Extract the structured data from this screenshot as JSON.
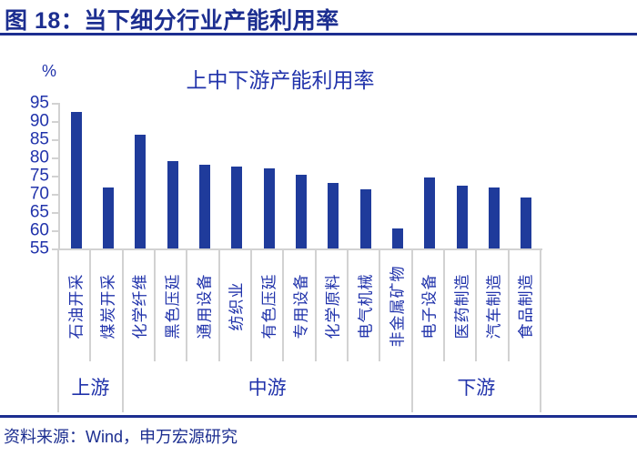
{
  "header": {
    "title": "图 18：当下细分行业产能利用率"
  },
  "source": {
    "text": "资料来源：Wind，申万宏源研究"
  },
  "colors": {
    "header_text": "#1c2e90",
    "chart_text": "#2133ab",
    "bar": "#1f3b9b",
    "axis_gray": "#d2d2d2"
  },
  "chart_data": {
    "type": "bar",
    "title": "上中下游产能利用率",
    "y_unit": "%",
    "categories": [
      "石油开采",
      "煤炭开采",
      "化学纤维",
      "黑色压延",
      "通用设备",
      "纺织业",
      "有色压延",
      "专用设备",
      "化学原料",
      "电气机械",
      "非金属矿物",
      "电子设备",
      "医药制造",
      "汽车制造",
      "食品制造"
    ],
    "values": [
      92.6,
      71.7,
      86.3,
      79.1,
      77.9,
      77.4,
      77.1,
      75.2,
      73.0,
      71.3,
      60.5,
      74.4,
      72.2,
      71.7,
      68.9
    ],
    "groups": [
      {
        "label": "上游",
        "from": 0,
        "to": 2
      },
      {
        "label": "中游",
        "from": 2,
        "to": 11
      },
      {
        "label": "下游",
        "from": 11,
        "to": 15
      }
    ],
    "ylim": [
      55,
      95
    ],
    "yticks": [
      95,
      90,
      85,
      80,
      75,
      70,
      65,
      60,
      55
    ],
    "grid": false,
    "legend": "none",
    "bar_color": "#1f3b9b"
  }
}
